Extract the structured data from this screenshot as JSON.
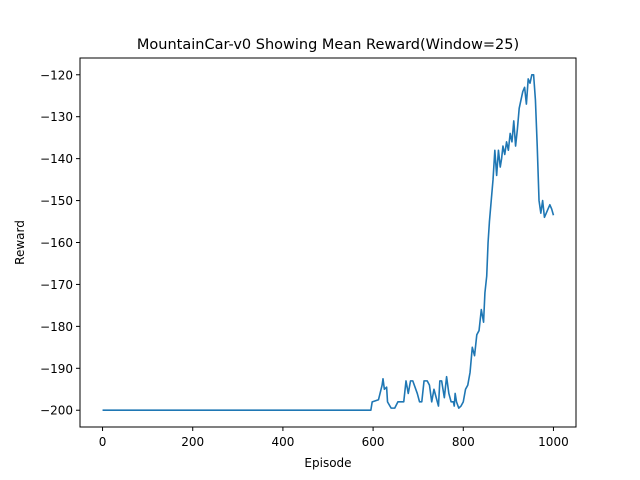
{
  "chart_data": {
    "type": "line",
    "title": "MountainCar-v0 Showing Mean Reward(Window=25)",
    "xlabel": "Episode",
    "ylabel": "Reward",
    "xlim": [
      -50,
      1050
    ],
    "ylim": [
      -204,
      -116
    ],
    "grid": false,
    "x_ticks": [
      {
        "value": 0,
        "label": "0"
      },
      {
        "value": 200,
        "label": "200"
      },
      {
        "value": 400,
        "label": "400"
      },
      {
        "value": 600,
        "label": "600"
      },
      {
        "value": 800,
        "label": "800"
      },
      {
        "value": 1000,
        "label": "1000"
      }
    ],
    "y_ticks": [
      {
        "value": -200,
        "label": "−200"
      },
      {
        "value": -190,
        "label": "−190"
      },
      {
        "value": -180,
        "label": "−180"
      },
      {
        "value": -170,
        "label": "−170"
      },
      {
        "value": -160,
        "label": "−160"
      },
      {
        "value": -150,
        "label": "−150"
      },
      {
        "value": -140,
        "label": "−140"
      },
      {
        "value": -130,
        "label": "−130"
      },
      {
        "value": -120,
        "label": "−120"
      }
    ],
    "color": "#1f77b4",
    "x": [
      0,
      595,
      598,
      612,
      620,
      622,
      625,
      630,
      632,
      640,
      648,
      655,
      668,
      673,
      678,
      683,
      688,
      698,
      703,
      708,
      713,
      720,
      725,
      730,
      735,
      745,
      748,
      752,
      758,
      763,
      768,
      773,
      778,
      780,
      782,
      785,
      790,
      795,
      800,
      805,
      810,
      815,
      820,
      825,
      830,
      835,
      840,
      845,
      848,
      852,
      855,
      858,
      862,
      866,
      870,
      874,
      878,
      882,
      885,
      888,
      892,
      896,
      900,
      904,
      908,
      912,
      916,
      920,
      924,
      928,
      932,
      936,
      940,
      944,
      948,
      952,
      956,
      960,
      964,
      968,
      972,
      976,
      980,
      984,
      988,
      992,
      996,
      1000
    ],
    "values": [
      -200,
      -200,
      -198,
      -197.5,
      -194,
      -192.5,
      -195,
      -194.5,
      -198,
      -199.5,
      -199.5,
      -198,
      -198,
      -193,
      -196,
      -193,
      -193,
      -196,
      -198,
      -198,
      -193,
      -193,
      -194,
      -198,
      -195,
      -199,
      -193,
      -193,
      -197,
      -192,
      -196,
      -198,
      -198,
      -199,
      -196,
      -198,
      -199.5,
      -199,
      -198,
      -195,
      -194,
      -191,
      -185,
      -187,
      -182,
      -181,
      -176,
      -179,
      -172,
      -168,
      -160,
      -155,
      -150,
      -145,
      -138,
      -144,
      -138,
      -142,
      -140,
      -137,
      -139,
      -136,
      -138,
      -134,
      -136,
      -131,
      -137,
      -133,
      -128,
      -126,
      -124,
      -123,
      -127,
      -121,
      -122,
      -120,
      -120,
      -126,
      -137,
      -150,
      -153,
      -150,
      -154,
      -153,
      -152,
      -151,
      -152,
      -153.5
    ]
  }
}
